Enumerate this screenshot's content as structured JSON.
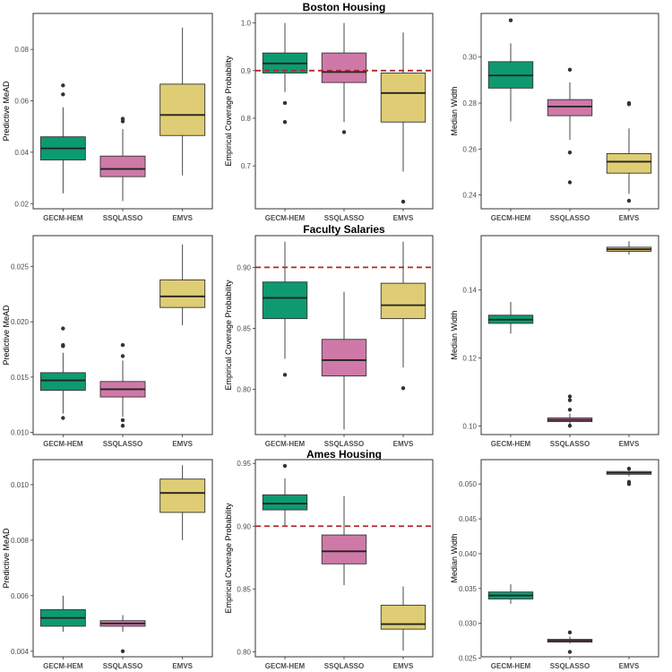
{
  "colors": {
    "GECM-HEM": "#0e9a70",
    "SSQLASSO": "#cf79a8",
    "EMVS": "#decd74",
    "reference_line": "#b2272a"
  },
  "row_titles": [
    "Boston Housing",
    "Faculty Salaries",
    "Ames Housing"
  ],
  "chart_data": [
    {
      "type": "box",
      "panel": "boston-mead",
      "title": "",
      "xlabel": "",
      "ylabel": "Predictive MeAD",
      "ylim": [
        0.018,
        0.094
      ],
      "yticks": [
        0.02,
        0.04,
        0.06,
        0.08
      ],
      "ytick_labels": [
        "0.02",
        "0.04",
        "0.06",
        "0.08"
      ],
      "categories": [
        "GECM-HEM",
        "SSQLASSO",
        "EMVS"
      ],
      "series": [
        {
          "name": "GECM-HEM",
          "whisker_low": 0.024,
          "q1": 0.037,
          "median": 0.0415,
          "q3": 0.046,
          "whisker_high": 0.0575,
          "outliers": [
            0.0625,
            0.066
          ]
        },
        {
          "name": "SSQLASSO",
          "whisker_low": 0.021,
          "q1": 0.0305,
          "median": 0.0335,
          "q3": 0.0385,
          "whisker_high": 0.049,
          "outliers": [
            0.052,
            0.053
          ]
        },
        {
          "name": "EMVS",
          "whisker_low": 0.031,
          "q1": 0.0465,
          "median": 0.0545,
          "q3": 0.0665,
          "whisker_high": 0.0885,
          "outliers": []
        }
      ],
      "reference_line": null
    },
    {
      "type": "box",
      "panel": "boston-coverage",
      "title": "Boston Housing",
      "xlabel": "",
      "ylabel": "Empirical Coverage Probability",
      "ylim": [
        0.61,
        1.02
      ],
      "yticks": [
        0.7,
        0.8,
        0.9,
        1.0
      ],
      "ytick_labels": [
        "0.7",
        "0.8",
        "0.9",
        "1.0"
      ],
      "categories": [
        "GECM-HEM",
        "SSQLASSO",
        "EMVS"
      ],
      "series": [
        {
          "name": "GECM-HEM",
          "whisker_low": 0.855,
          "q1": 0.895,
          "median": 0.915,
          "q3": 0.937,
          "whisker_high": 1.0,
          "outliers": [
            0.832,
            0.792
          ]
        },
        {
          "name": "SSQLASSO",
          "whisker_low": 0.792,
          "q1": 0.875,
          "median": 0.897,
          "q3": 0.937,
          "whisker_high": 1.0,
          "outliers": [
            0.771
          ]
        },
        {
          "name": "EMVS",
          "whisker_low": 0.688,
          "q1": 0.792,
          "median": 0.853,
          "q3": 0.895,
          "whisker_high": 0.98,
          "outliers": [
            0.625
          ]
        }
      ],
      "reference_line": 0.9
    },
    {
      "type": "box",
      "panel": "boston-width",
      "title": "",
      "xlabel": "",
      "ylabel": "Median Width",
      "ylim": [
        0.234,
        0.319
      ],
      "yticks": [
        0.24,
        0.26,
        0.28,
        0.3
      ],
      "ytick_labels": [
        "0.24",
        "0.26",
        "0.28",
        "0.30"
      ],
      "categories": [
        "GECM-HEM",
        "SSQLASSO",
        "EMVS"
      ],
      "series": [
        {
          "name": "GECM-HEM",
          "whisker_low": 0.272,
          "q1": 0.2865,
          "median": 0.292,
          "q3": 0.298,
          "whisker_high": 0.306,
          "outliers": [
            0.316
          ]
        },
        {
          "name": "SSQLASSO",
          "whisker_low": 0.264,
          "q1": 0.2745,
          "median": 0.2785,
          "q3": 0.2815,
          "whisker_high": 0.289,
          "outliers": [
            0.2945,
            0.2585,
            0.2455
          ]
        },
        {
          "name": "EMVS",
          "whisker_low": 0.2405,
          "q1": 0.2495,
          "median": 0.2545,
          "q3": 0.258,
          "whisker_high": 0.269,
          "outliers": [
            0.28,
            0.2795,
            0.2375
          ]
        }
      ],
      "reference_line": null
    },
    {
      "type": "box",
      "panel": "faculty-mead",
      "title": "",
      "xlabel": "",
      "ylabel": "Predictive MeAD",
      "ylim": [
        0.0098,
        0.0278
      ],
      "yticks": [
        0.01,
        0.015,
        0.02,
        0.025
      ],
      "ytick_labels": [
        "0.010",
        "0.015",
        "0.020",
        "0.025"
      ],
      "categories": [
        "GECM-HEM",
        "SSQLASSO",
        "EMVS"
      ],
      "series": [
        {
          "name": "GECM-HEM",
          "whisker_low": 0.0117,
          "q1": 0.0138,
          "median": 0.0147,
          "q3": 0.0154,
          "whisker_high": 0.0172,
          "outliers": [
            0.0178,
            0.0179,
            0.0194,
            0.0113
          ]
        },
        {
          "name": "SSQLASSO",
          "whisker_low": 0.0114,
          "q1": 0.0132,
          "median": 0.0139,
          "q3": 0.0146,
          "whisker_high": 0.0165,
          "outliers": [
            0.0169,
            0.0179,
            0.0111,
            0.0106
          ]
        },
        {
          "name": "EMVS",
          "whisker_low": 0.0197,
          "q1": 0.0213,
          "median": 0.0223,
          "q3": 0.0238,
          "whisker_high": 0.027,
          "outliers": []
        }
      ],
      "reference_line": null
    },
    {
      "type": "box",
      "panel": "faculty-coverage",
      "title": "Faculty Salaries",
      "xlabel": "",
      "ylabel": "Empirical Coverage Probability",
      "ylim": [
        0.763,
        0.926
      ],
      "yticks": [
        0.8,
        0.85,
        0.9
      ],
      "ytick_labels": [
        "0.80",
        "0.85",
        "0.90"
      ],
      "categories": [
        "GECM-HEM",
        "SSQLASSO",
        "EMVS"
      ],
      "series": [
        {
          "name": "GECM-HEM",
          "whisker_low": 0.825,
          "q1": 0.858,
          "median": 0.875,
          "q3": 0.888,
          "whisker_high": 0.921,
          "outliers": [
            0.812
          ]
        },
        {
          "name": "SSQLASSO",
          "whisker_low": 0.767,
          "q1": 0.811,
          "median": 0.824,
          "q3": 0.841,
          "whisker_high": 0.88,
          "outliers": []
        },
        {
          "name": "EMVS",
          "whisker_low": 0.818,
          "q1": 0.858,
          "median": 0.869,
          "q3": 0.887,
          "whisker_high": 0.921,
          "outliers": [
            0.801
          ]
        }
      ],
      "reference_line": 0.9
    },
    {
      "type": "box",
      "panel": "faculty-width",
      "title": "",
      "xlabel": "",
      "ylabel": "Median Width",
      "ylim": [
        0.0975,
        0.156
      ],
      "yticks": [
        0.1,
        0.12,
        0.14
      ],
      "ytick_labels": [
        "0.10",
        "0.12",
        "0.14"
      ],
      "categories": [
        "GECM-HEM",
        "SSQLASSO",
        "EMVS"
      ],
      "series": [
        {
          "name": "GECM-HEM",
          "whisker_low": 0.1272,
          "q1": 0.1302,
          "median": 0.1313,
          "q3": 0.1326,
          "whisker_high": 0.1365,
          "outliers": []
        },
        {
          "name": "SSQLASSO",
          "whisker_low": 0.1005,
          "q1": 0.1013,
          "median": 0.1018,
          "q3": 0.1024,
          "whisker_high": 0.1037,
          "outliers": [
            0.1048,
            0.1076,
            0.1087,
            0.1001
          ]
        },
        {
          "name": "EMVS",
          "whisker_low": 0.1504,
          "q1": 0.1514,
          "median": 0.152,
          "q3": 0.1526,
          "whisker_high": 0.1544,
          "outliers": []
        }
      ],
      "reference_line": null
    },
    {
      "type": "box",
      "panel": "ames-mead",
      "title": "",
      "xlabel": "",
      "ylabel": "Predictive MeAD",
      "ylim": [
        0.0038,
        0.0109
      ],
      "yticks": [
        0.004,
        0.006,
        0.008,
        0.01
      ],
      "ytick_labels": [
        "0.004",
        "0.006",
        "0.008",
        "0.010"
      ],
      "categories": [
        "GECM-HEM",
        "SSQLASSO",
        "EMVS"
      ],
      "series": [
        {
          "name": "GECM-HEM",
          "whisker_low": 0.0047,
          "q1": 0.0049,
          "median": 0.0052,
          "q3": 0.0055,
          "whisker_high": 0.006,
          "outliers": []
        },
        {
          "name": "SSQLASSO",
          "whisker_low": 0.0047,
          "q1": 0.0049,
          "median": 0.005,
          "q3": 0.0051,
          "whisker_high": 0.0053,
          "outliers": [
            0.004
          ]
        },
        {
          "name": "EMVS",
          "whisker_low": 0.008,
          "q1": 0.009,
          "median": 0.0097,
          "q3": 0.0102,
          "whisker_high": 0.0107,
          "outliers": []
        }
      ],
      "reference_line": null
    },
    {
      "type": "box",
      "panel": "ames-coverage",
      "title": "Ames Housing",
      "xlabel": "",
      "ylabel": "Empirical Coverage Probability",
      "ylim": [
        0.796,
        0.953
      ],
      "yticks": [
        0.8,
        0.85,
        0.9,
        0.95
      ],
      "ytick_labels": [
        "0.80",
        "0.85",
        "0.90",
        "0.95"
      ],
      "categories": [
        "GECM-HEM",
        "SSQLASSO",
        "EMVS"
      ],
      "series": [
        {
          "name": "GECM-HEM",
          "whisker_low": 0.9,
          "q1": 0.913,
          "median": 0.918,
          "q3": 0.925,
          "whisker_high": 0.938,
          "outliers": [
            0.948
          ]
        },
        {
          "name": "SSQLASSO",
          "whisker_low": 0.853,
          "q1": 0.87,
          "median": 0.88,
          "q3": 0.893,
          "whisker_high": 0.924,
          "outliers": []
        },
        {
          "name": "EMVS",
          "whisker_low": 0.801,
          "q1": 0.818,
          "median": 0.822,
          "q3": 0.837,
          "whisker_high": 0.852,
          "outliers": []
        }
      ],
      "reference_line": 0.9
    },
    {
      "type": "box",
      "panel": "ames-width",
      "title": "",
      "xlabel": "",
      "ylabel": "Median Width",
      "ylim": [
        0.0252,
        0.0535
      ],
      "yticks": [
        0.025,
        0.03,
        0.035,
        0.04,
        0.045,
        0.05
      ],
      "ytick_labels": [
        "0.025",
        "0.030",
        "0.035",
        "0.040",
        "0.045",
        "0.050"
      ],
      "categories": [
        "GECM-HEM",
        "SSQLASSO",
        "EMVS"
      ],
      "series": [
        {
          "name": "GECM-HEM",
          "whisker_low": 0.0328,
          "q1": 0.0335,
          "median": 0.034,
          "q3": 0.0345,
          "whisker_high": 0.0356,
          "outliers": []
        },
        {
          "name": "SSQLASSO",
          "whisker_low": 0.0271,
          "q1": 0.0273,
          "median": 0.0275,
          "q3": 0.0277,
          "whisker_high": 0.0281,
          "outliers": [
            0.0287,
            0.0259
          ]
        },
        {
          "name": "EMVS",
          "whisker_low": 0.0511,
          "q1": 0.0514,
          "median": 0.0516,
          "q3": 0.0518,
          "whisker_high": 0.0521,
          "outliers": [
            0.0522,
            0.0503,
            0.05
          ]
        }
      ],
      "reference_line": null
    }
  ]
}
